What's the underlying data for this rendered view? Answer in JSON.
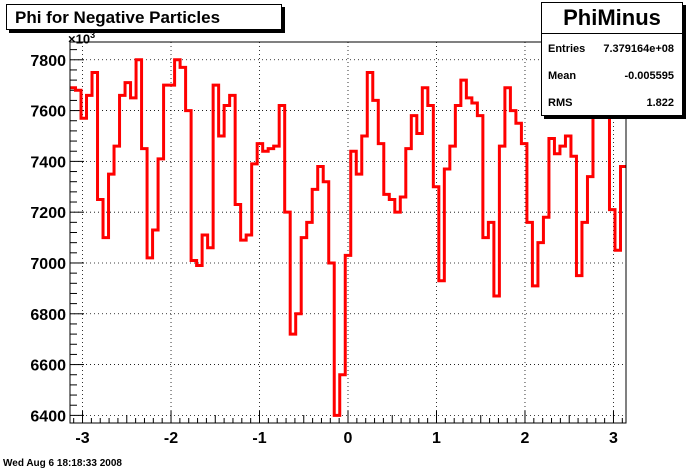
{
  "title": "Phi for Negative Particles",
  "stats": {
    "name": "PhiMinus",
    "rows": [
      {
        "key": "Entries",
        "value": "7.379164e+08"
      },
      {
        "key": "Mean",
        "value": "-0.005595"
      },
      {
        "key": "RMS",
        "value": "1.822"
      }
    ]
  },
  "footer": "Wed Aug  6 18:18:33 2008",
  "exponent": {
    "base": "×10",
    "power": "3"
  },
  "colors": {
    "line": "#ff0000",
    "frame": "#000000",
    "grid": "#000000"
  },
  "chart_data": {
    "type": "line",
    "style": "step-histogram",
    "grid": true,
    "xlim": [
      -3.1416,
      3.1416
    ],
    "ylim": [
      6370,
      7870
    ],
    "x_ticks": [
      -3,
      -2,
      -1,
      0,
      1,
      2,
      3
    ],
    "x_tick_labels": [
      "-3",
      "-2",
      "-1",
      "0",
      "1",
      "2",
      "3"
    ],
    "y_ticks": [
      6400,
      6600,
      6800,
      7000,
      7200,
      7400,
      7600,
      7800
    ],
    "y_tick_labels": [
      "6400",
      "6600",
      "6800",
      "7000",
      "7200",
      "7400",
      "7600",
      "7800"
    ],
    "series": [
      {
        "values": [
          7690,
          7680,
          7570,
          7660,
          7750,
          7250,
          7100,
          7350,
          7460,
          7660,
          7710,
          7650,
          7800,
          7450,
          7020,
          7130,
          7410,
          7700,
          7700,
          7800,
          7770,
          7600,
          7010,
          6990,
          7110,
          7060,
          7700,
          7500,
          7620,
          7660,
          7230,
          7090,
          7110,
          7390,
          7470,
          7440,
          7450,
          7460,
          7620,
          7200,
          6720,
          6800,
          7100,
          7160,
          7290,
          7380,
          7320,
          7000,
          6400,
          6560,
          7030,
          7440,
          7350,
          7500,
          7750,
          7640,
          7470,
          7270,
          7250,
          7200,
          7260,
          7450,
          7580,
          7510,
          7690,
          7620,
          7300,
          6930,
          7370,
          7460,
          7620,
          7720,
          7650,
          7630,
          7580,
          7100,
          7160,
          6870,
          7460,
          7690,
          7600,
          7550,
          7470,
          7160,
          6910,
          7080,
          7180,
          7490,
          7430,
          7460,
          7500,
          7420,
          6950,
          7160,
          7340,
          7650,
          7780,
          7650,
          7210,
          7050,
          7380
        ]
      }
    ]
  }
}
